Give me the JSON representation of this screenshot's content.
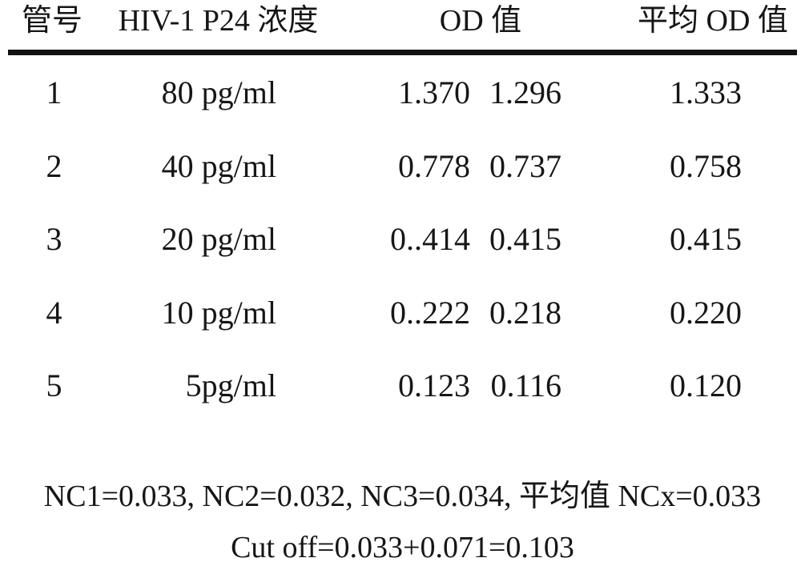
{
  "table": {
    "headers": {
      "tube": "管号",
      "concentration": "HIV-1 P24 浓度",
      "od": "OD 值",
      "avg_od": "平均 OD 值"
    },
    "rows": [
      {
        "tube": "1",
        "concentration": "80 pg/ml",
        "od1": "1.370",
        "od2": "1.296",
        "avg": "1.333"
      },
      {
        "tube": "2",
        "concentration": "40 pg/ml",
        "od1": "0.778",
        "od2": "0.737",
        "avg": "0.758"
      },
      {
        "tube": "3",
        "concentration": "20 pg/ml",
        "od1": "0..414",
        "od2": "0.415",
        "avg": "0.415"
      },
      {
        "tube": "4",
        "concentration": "10 pg/ml",
        "od1": "0..222",
        "od2": "0.218",
        "avg": "0.220"
      },
      {
        "tube": "5",
        "concentration": "5pg/ml",
        "od1": "0.123",
        "od2": "0.116",
        "avg": "0.120"
      }
    ]
  },
  "notes": {
    "nc_values": "NC1=0.033, NC2=0.032, NC3=0.034,  平均值 NCx=0.033",
    "cutoff": "Cut off=0.033+0.071=0.103"
  },
  "colors": {
    "text": "#161616",
    "rule": "#121212",
    "background": "#ffffff"
  }
}
